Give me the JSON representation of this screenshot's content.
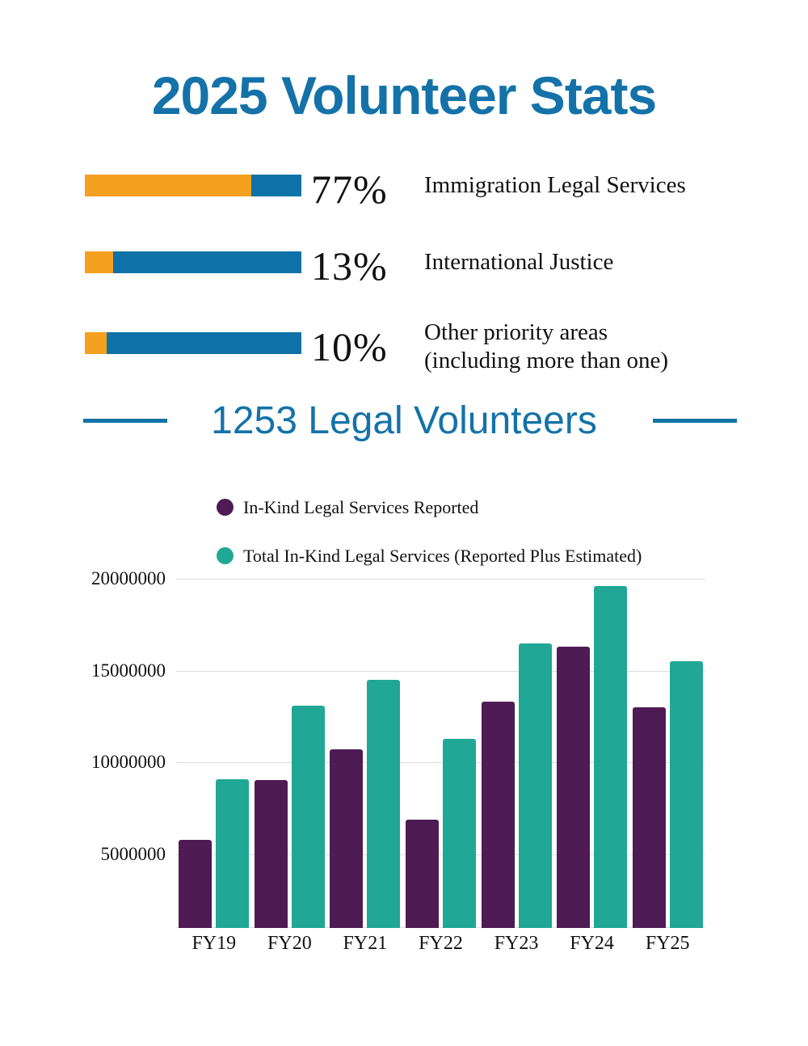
{
  "title": "2025 Volunteer Stats",
  "theme": {
    "blue": "#1472a8",
    "bar_blue": "#0e72a8",
    "orange": "#f5a01f",
    "purple": "#4e1b54",
    "teal": "#20a795",
    "grid": "#dcdcdc",
    "text": "#111111"
  },
  "stats": [
    {
      "percent": 77,
      "percent_label": "77%",
      "label_lines": [
        "Immigration Legal Services"
      ]
    },
    {
      "percent": 13,
      "percent_label": "13%",
      "label_lines": [
        "International Justice"
      ]
    },
    {
      "percent": 10,
      "percent_label": "10%",
      "label_lines": [
        "Other priority areas",
        "(including more than one)"
      ]
    }
  ],
  "volunteers_heading": "1253 Legal Volunteers",
  "chart_data": {
    "type": "bar",
    "title": "",
    "xlabel": "",
    "ylabel": "",
    "categories": [
      "FY19",
      "FY20",
      "FY21",
      "FY22",
      "FY23",
      "FY24",
      "FY25"
    ],
    "series": [
      {
        "name": "In-Kind Legal Services Reported",
        "color": "#4e1b54",
        "values": [
          5800000,
          9050000,
          10700000,
          6900000,
          13300000,
          16300000,
          13000000
        ]
      },
      {
        "name": "Total In-Kind Legal Services (Reported Plus Estimated)",
        "color": "#20a795",
        "values": [
          9100000,
          13100000,
          14500000,
          11300000,
          16500000,
          19600000,
          15500000
        ]
      }
    ],
    "yticks": [
      5000000,
      10000000,
      15000000,
      20000000
    ],
    "ytick_labels": [
      "5000000",
      "10000000",
      "15000000",
      "20000000"
    ],
    "ylim": [
      1000000,
      20700000
    ],
    "grid": true,
    "legend_position": "top-left"
  }
}
